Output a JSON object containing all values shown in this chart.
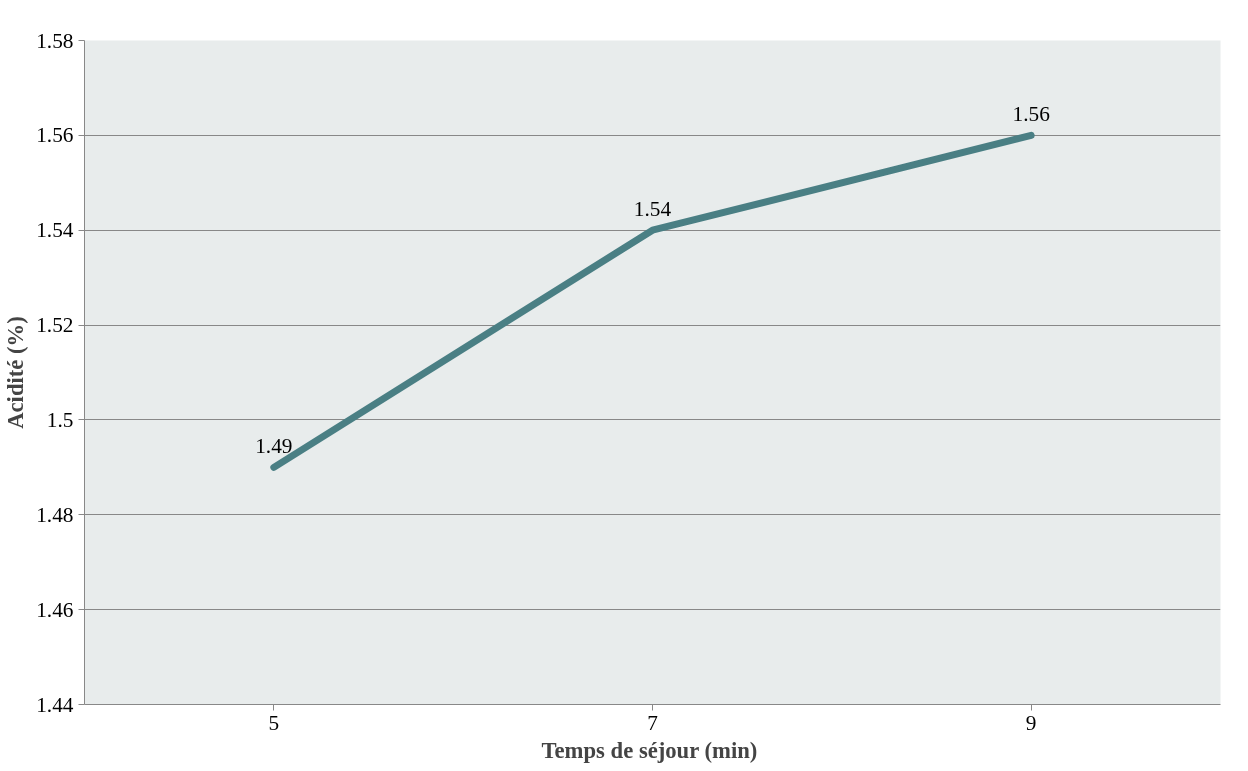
{
  "chart_data": {
    "type": "line",
    "xlabel": "Temps de séjour  (min)",
    "ylabel": "Acidité (%)",
    "categories": [
      "5",
      "7",
      "9"
    ],
    "series": [
      {
        "color": "#4a7f84",
        "values": [
          1.49,
          1.54,
          1.56
        ]
      }
    ],
    "ylim": [
      1.44,
      1.58
    ],
    "yticks": [
      1.44,
      1.46,
      1.48,
      1.5,
      1.52,
      1.54,
      1.56,
      1.58
    ],
    "grid": "y",
    "data_labels": true,
    "marker": "none",
    "line_style": "solid"
  }
}
